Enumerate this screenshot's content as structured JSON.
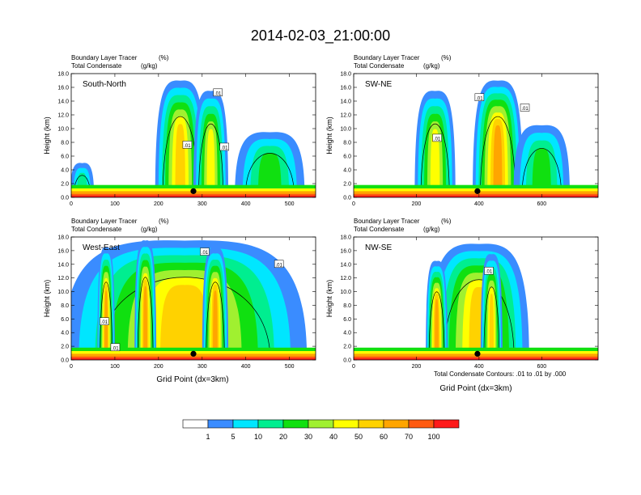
{
  "figure": {
    "title": "2014-02-03_21:00:00",
    "xlabel": "Grid Point (dx=3km)",
    "footnote": "Total Condensate Contours: .01 to .01 by .000"
  },
  "colorbar": {
    "colors": [
      "#ffffff",
      "#3a8cff",
      "#00e6ff",
      "#00ee90",
      "#10e010",
      "#a0f030",
      "#ffff00",
      "#ffd200",
      "#ffa500",
      "#ff5a10",
      "#ff1a1a"
    ],
    "labels": [
      "1",
      "5",
      "10",
      "20",
      "30",
      "40",
      "50",
      "60",
      "70",
      "100"
    ]
  },
  "chart_data": [
    {
      "type": "heatmap",
      "title": "South-North",
      "subtitle_line1_left": "Boundary Layer Tracer",
      "subtitle_line1_unit": "(%)",
      "subtitle_line2_left": "Total Condensate",
      "subtitle_line2_unit": "(g/kg)",
      "xlabel": "",
      "ylabel": "Height (km)",
      "xlim": [
        0,
        560
      ],
      "ylim": [
        0,
        18
      ],
      "xticks": [
        0,
        100,
        200,
        300,
        400,
        500
      ],
      "yticks": [
        "0.0",
        "2.0",
        "4.0",
        "6.0",
        "8.0",
        "10.0",
        "12.0",
        "14.0",
        "16.0",
        "18.0"
      ],
      "marker_x": 280,
      "contour_labels": [
        {
          "text": ".01",
          "x": 335,
          "y": 15.2
        },
        {
          "text": ".01",
          "x": 265,
          "y": 7.6
        },
        {
          "text": ".01",
          "x": 350,
          "y": 7.3
        }
      ],
      "plumes": [
        {
          "x": 250,
          "w": 115,
          "top": 16.5,
          "core": 50
        },
        {
          "x": 320,
          "w": 80,
          "top": 15.0,
          "core": 40
        },
        {
          "x": 455,
          "w": 160,
          "top": 9.0,
          "core": 20
        },
        {
          "x": 25,
          "w": 55,
          "top": 4.5,
          "core": 10
        }
      ]
    },
    {
      "type": "heatmap",
      "title": "SW-NE",
      "subtitle_line1_left": "Boundary Layer Tracer",
      "subtitle_line1_unit": "(%)",
      "subtitle_line2_left": "Total Condensate",
      "subtitle_line2_unit": "(g/kg)",
      "xlabel": "",
      "ylabel": "Height (km)",
      "xlim": [
        0,
        780
      ],
      "ylim": [
        0,
        18
      ],
      "xticks": [
        0,
        200,
        400,
        600
      ],
      "yticks": [
        "0.0",
        "2.0",
        "4.0",
        "6.0",
        "8.0",
        "10.0",
        "12.0",
        "14.0",
        "16.0",
        "18.0"
      ],
      "marker_x": 395,
      "contour_labels": [
        {
          "text": ".01",
          "x": 400,
          "y": 14.5
        },
        {
          "text": ".01",
          "x": 545,
          "y": 13.0
        },
        {
          "text": ".01",
          "x": 265,
          "y": 8.6
        }
      ],
      "plumes": [
        {
          "x": 460,
          "w": 160,
          "top": 16.5,
          "core": 60
        },
        {
          "x": 260,
          "w": 130,
          "top": 15.0,
          "core": 40
        },
        {
          "x": 600,
          "w": 180,
          "top": 10.0,
          "core": 20
        }
      ]
    },
    {
      "type": "heatmap",
      "title": "West-East",
      "subtitle_line1_left": "Boundary Layer Tracer",
      "subtitle_line1_unit": "(%)",
      "subtitle_line2_left": "Total Condensate",
      "subtitle_line2_unit": "(g/kg)",
      "xlabel": "",
      "ylabel": "Height (km)",
      "xlim": [
        0,
        560
      ],
      "ylim": [
        0,
        18
      ],
      "xticks": [
        0,
        100,
        200,
        300,
        400,
        500
      ],
      "yticks": [
        "0.0",
        "2.0",
        "4.0",
        "6.0",
        "8.0",
        "10.0",
        "12.0",
        "14.0",
        "16.0",
        "18.0"
      ],
      "marker_x": 280,
      "contour_labels": [
        {
          "text": ".01",
          "x": 305,
          "y": 15.8
        },
        {
          "text": ".01",
          "x": 475,
          "y": 14.0
        },
        {
          "text": ".01",
          "x": 75,
          "y": 5.6
        },
        {
          "text": ".01",
          "x": 100,
          "y": 1.8
        }
      ],
      "plumes": [
        {
          "x": 260,
          "w": 560,
          "top": 17.0,
          "core": 50
        },
        {
          "x": 80,
          "w": 40,
          "top": 16.0,
          "core": 60
        },
        {
          "x": 170,
          "w": 50,
          "top": 17.0,
          "core": 60
        },
        {
          "x": 330,
          "w": 60,
          "top": 16.0,
          "core": 60
        }
      ]
    },
    {
      "type": "heatmap",
      "title": "NW-SE",
      "subtitle_line1_left": "Boundary Layer Tracer",
      "subtitle_line1_unit": "(%)",
      "subtitle_line2_left": "Total Condensate",
      "subtitle_line2_unit": "(g/kg)",
      "xlabel": "",
      "ylabel": "Height (km)",
      "xlim": [
        0,
        780
      ],
      "ylim": [
        0,
        18
      ],
      "xticks": [
        0,
        200,
        400,
        600
      ],
      "yticks": [
        "0.0",
        "2.0",
        "4.0",
        "6.0",
        "8.0",
        "10.0",
        "12.0",
        "14.0",
        "16.0",
        "18.0"
      ],
      "marker_x": 395,
      "contour_labels": [
        {
          "text": ".01",
          "x": 430,
          "y": 13.0
        }
      ],
      "plumes": [
        {
          "x": 400,
          "w": 320,
          "top": 16.5,
          "core": 50
        },
        {
          "x": 265,
          "w": 70,
          "top": 14.0,
          "core": 60
        },
        {
          "x": 440,
          "w": 70,
          "top": 15.0,
          "core": 50
        }
      ]
    }
  ]
}
